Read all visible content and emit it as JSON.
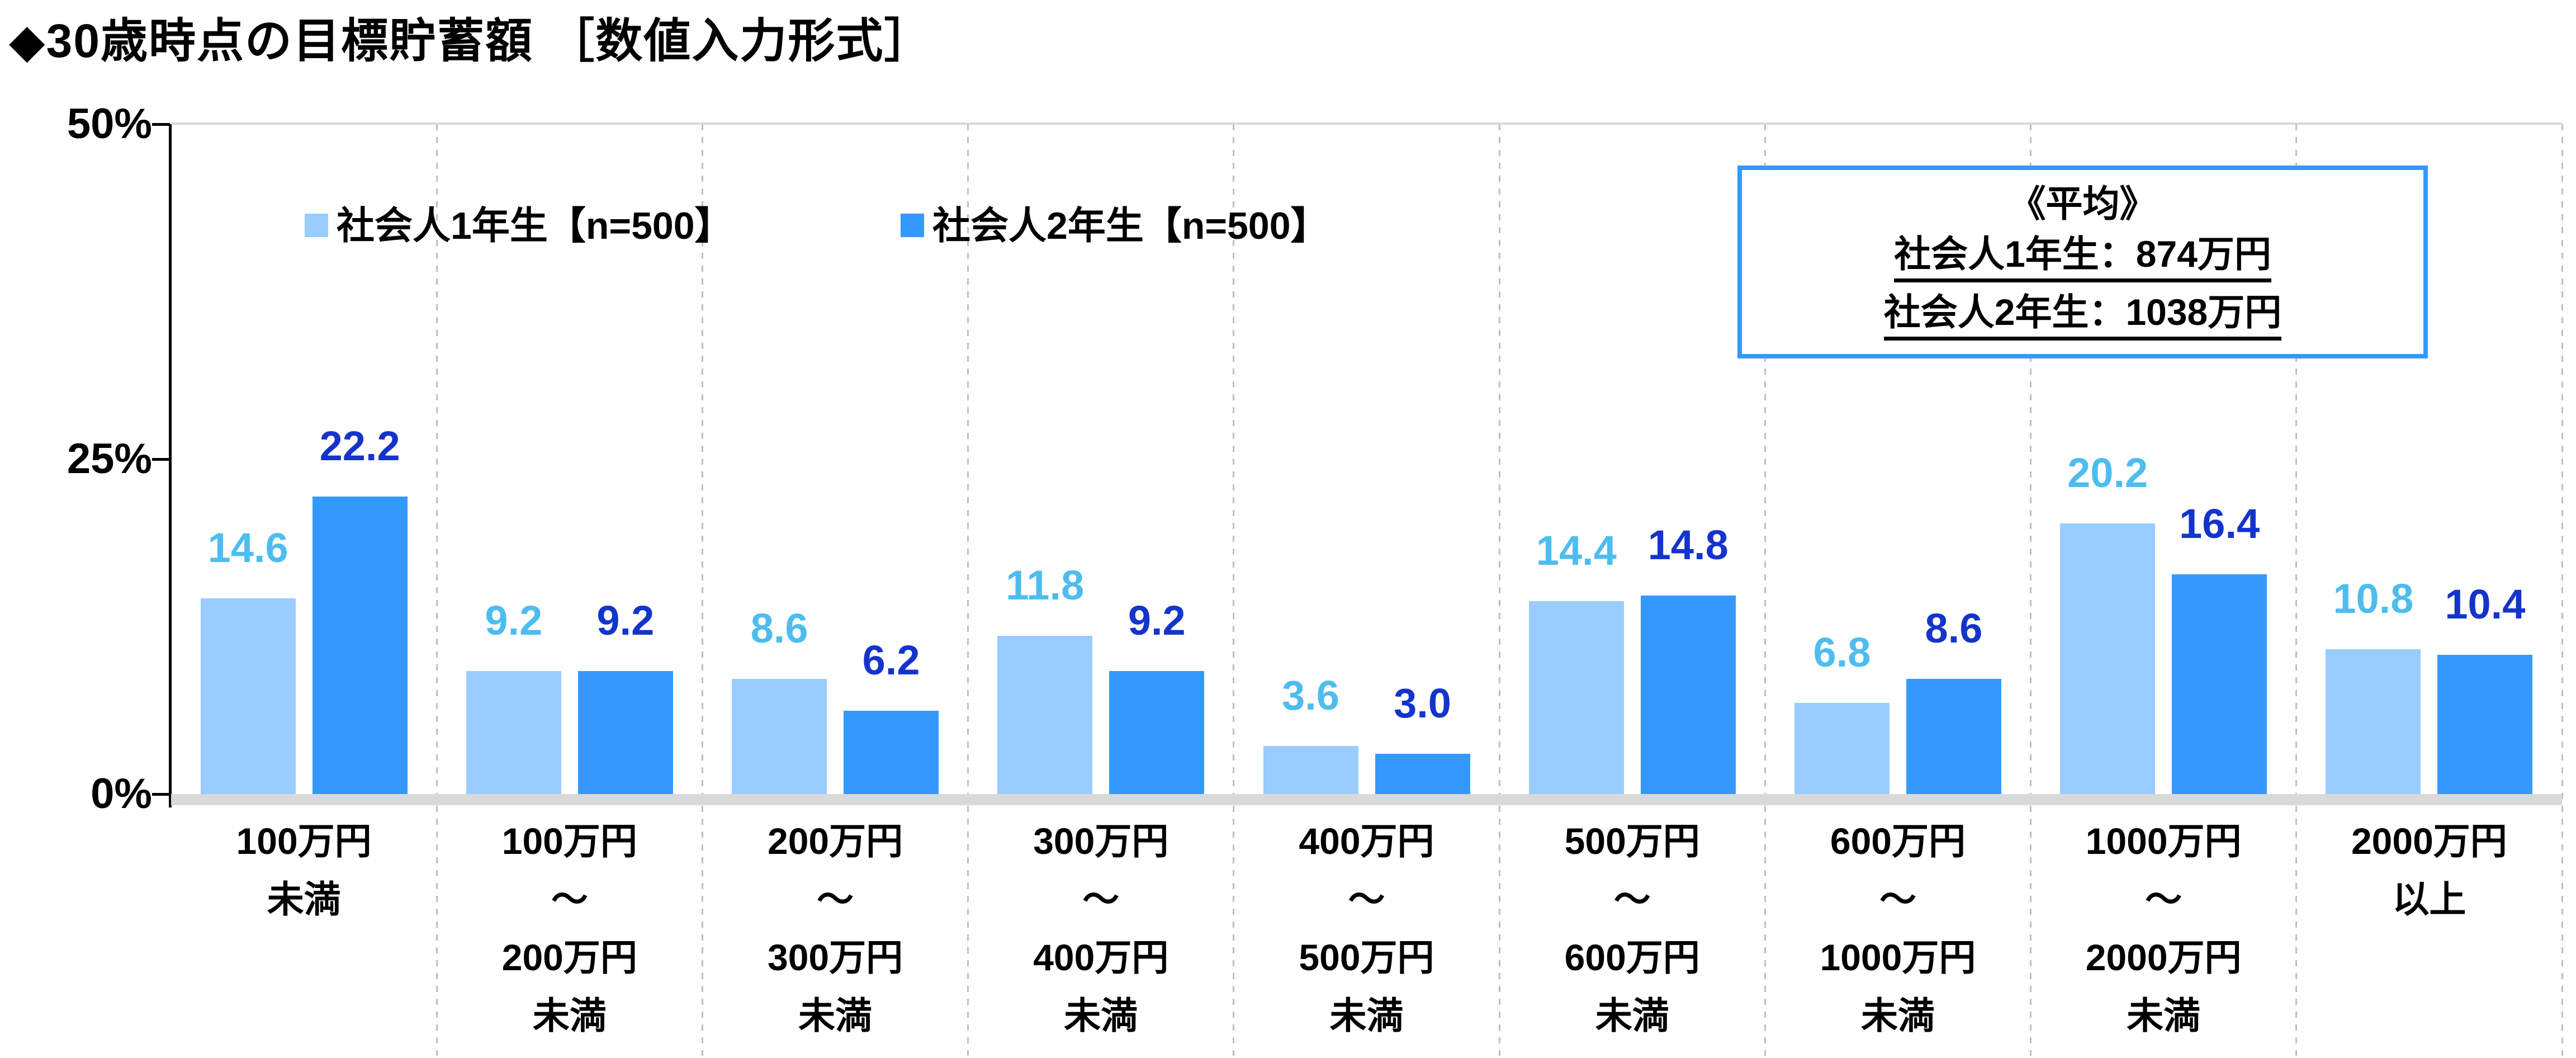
{
  "title": "◆30歳時点の目標貯蓄額 ［数値入力形式］",
  "y_axis": {
    "ticks": [
      "50%",
      "25%",
      "0%"
    ]
  },
  "legend": [
    {
      "label": "社会人1年生【n=500】",
      "color": "#99CCFF"
    },
    {
      "label": "社会人2年生【n=500】",
      "color": "#3399FF"
    }
  ],
  "average_box": {
    "heading": "《平均》",
    "lines": [
      "社会人1年生：874万円",
      "社会人2年生：1038万円"
    ],
    "border_color": "#3399FF"
  },
  "colors": {
    "series1_bar": "#99CCFF",
    "series2_bar": "#3399FF",
    "series1_value_label": "#4DBDEE",
    "series2_value_label": "#1434CB",
    "axis": "#000000",
    "baseline_band": "#D9D9D9",
    "separator": "#BFBFBF"
  },
  "chart_data": {
    "type": "bar",
    "title": "◆30歳時点の目標貯蓄額 ［数値入力形式］",
    "categories": [
      [
        "100万円",
        "未満"
      ],
      [
        "100万円",
        "～",
        "200万円",
        "未満"
      ],
      [
        "200万円",
        "～",
        "300万円",
        "未満"
      ],
      [
        "300万円",
        "～",
        "400万円",
        "未満"
      ],
      [
        "400万円",
        "～",
        "500万円",
        "未満"
      ],
      [
        "500万円",
        "～",
        "600万円",
        "未満"
      ],
      [
        "600万円",
        "～",
        "1000万円",
        "未満"
      ],
      [
        "1000万円",
        "～",
        "2000万円",
        "未満"
      ],
      [
        "2000万円",
        "以上"
      ]
    ],
    "series": [
      {
        "name": "社会人1年生【n=500】",
        "color": "#99CCFF",
        "label_color": "#4DBDEE",
        "values": [
          14.6,
          9.2,
          8.6,
          11.8,
          3.6,
          14.4,
          6.8,
          20.2,
          10.8
        ]
      },
      {
        "name": "社会人2年生【n=500】",
        "color": "#3399FF",
        "label_color": "#1434CB",
        "values": [
          22.2,
          9.2,
          6.2,
          9.2,
          3.0,
          14.8,
          8.6,
          16.4,
          10.4
        ]
      }
    ],
    "ylim": [
      0,
      50
    ],
    "ytick_values": [
      0,
      25,
      50
    ],
    "value_label_decimals": 1,
    "grid": "vertical-dashed-category-separators",
    "legend_position": "inside-top-left"
  }
}
